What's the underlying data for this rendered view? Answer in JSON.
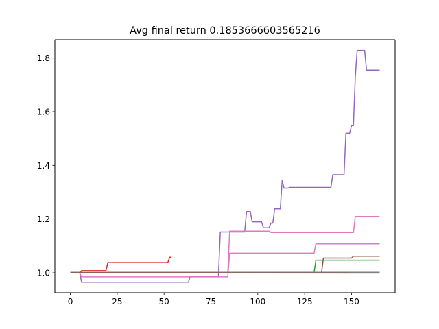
{
  "chart_data": {
    "type": "line",
    "title": "Avg final return 0.1853666603565216",
    "xlabel": "",
    "ylabel": "",
    "xlim": [
      -8.25,
      173.25
    ],
    "ylim": [
      0.926,
      1.868
    ],
    "x_ticks": [
      0,
      25,
      50,
      75,
      100,
      125,
      150
    ],
    "y_ticks": [
      1.0,
      1.2,
      1.4,
      1.6,
      1.8
    ],
    "y_tick_labels": [
      "1.0",
      "1.2",
      "1.4",
      "1.6",
      "1.8"
    ],
    "grid": false,
    "legend": "none",
    "series": [
      {
        "color": "#1f77b4",
        "points": [
          [
            0,
            1.0
          ],
          [
            165,
            1.0
          ]
        ]
      },
      {
        "color": "#ff7f0e",
        "points": [
          [
            0,
            1.0
          ],
          [
            165,
            1.0
          ]
        ]
      },
      {
        "color": "#2ca02c",
        "points": [
          [
            0,
            1.0
          ],
          [
            130,
            1.0
          ],
          [
            131,
            1.047
          ],
          [
            165,
            1.047
          ]
        ]
      },
      {
        "color": "#d62728",
        "points": [
          [
            0,
            1.0
          ],
          [
            5,
            1.0
          ],
          [
            6,
            1.008
          ],
          [
            19,
            1.008
          ],
          [
            20,
            1.038
          ],
          [
            52,
            1.038
          ],
          [
            53,
            1.058
          ],
          [
            54,
            1.058
          ]
        ]
      },
      {
        "color": "#9467bd",
        "points": [
          [
            0,
            1.0
          ],
          [
            5,
            1.0
          ],
          [
            6,
            0.965
          ],
          [
            63,
            0.965
          ],
          [
            64,
            0.988
          ],
          [
            79,
            0.988
          ],
          [
            80,
            1.152
          ],
          [
            93,
            1.152
          ],
          [
            94,
            1.228
          ],
          [
            96,
            1.228
          ],
          [
            97,
            1.19
          ],
          [
            102,
            1.19
          ],
          [
            103,
            1.168
          ],
          [
            106,
            1.168
          ],
          [
            107,
            1.185
          ],
          [
            108,
            1.185
          ],
          [
            109,
            1.238
          ],
          [
            112,
            1.238
          ],
          [
            113,
            1.343
          ],
          [
            114,
            1.315
          ],
          [
            116,
            1.315
          ],
          [
            117,
            1.318
          ],
          [
            139,
            1.318
          ],
          [
            140,
            1.365
          ],
          [
            146,
            1.365
          ],
          [
            147,
            1.52
          ],
          [
            149,
            1.52
          ],
          [
            150,
            1.548
          ],
          [
            151,
            1.548
          ],
          [
            152,
            1.73
          ],
          [
            153,
            1.828
          ],
          [
            157,
            1.828
          ],
          [
            158,
            1.755
          ],
          [
            165,
            1.755
          ]
        ]
      },
      {
        "color": "#8c564b",
        "points": [
          [
            0,
            1.0
          ],
          [
            134,
            1.0
          ],
          [
            135,
            1.055
          ],
          [
            150,
            1.055
          ],
          [
            151,
            1.062
          ],
          [
            165,
            1.062
          ]
        ]
      },
      {
        "color": "#e377c2",
        "points": [
          [
            0,
            1.0
          ],
          [
            5,
            1.0
          ],
          [
            6,
            0.985
          ],
          [
            63,
            0.985
          ],
          [
            64,
            0.985
          ],
          [
            84,
            0.985
          ],
          [
            85,
            1.073
          ],
          [
            86,
            1.073
          ],
          [
            130,
            1.073
          ],
          [
            131,
            1.108
          ],
          [
            165,
            1.108
          ]
        ]
      },
      {
        "color": "#e377c2",
        "points": [
          [
            0,
            1.0
          ],
          [
            84,
            1.0
          ],
          [
            85,
            1.155
          ],
          [
            106,
            1.155
          ],
          [
            107,
            1.15
          ],
          [
            151,
            1.15
          ],
          [
            152,
            1.21
          ],
          [
            165,
            1.21
          ]
        ]
      },
      {
        "color": "#7f7f7f",
        "points": [
          [
            0,
            1.002
          ],
          [
            165,
            1.002
          ]
        ]
      },
      {
        "color": "#8c564b",
        "points": [
          [
            0,
            1.0
          ],
          [
            165,
            0.999
          ]
        ]
      }
    ]
  }
}
